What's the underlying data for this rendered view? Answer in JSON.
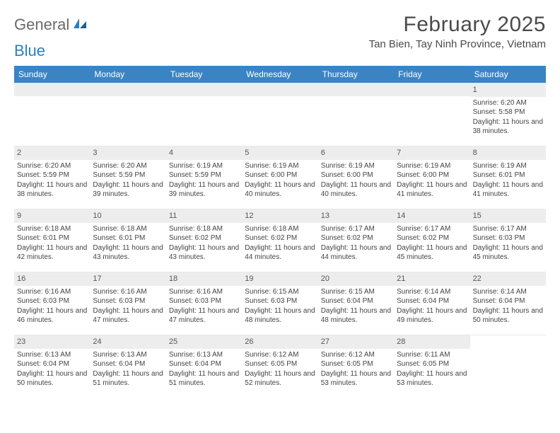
{
  "logo": {
    "word1": "General",
    "word2": "Blue"
  },
  "title": "February 2025",
  "location": "Tan Bien, Tay Ninh Province, Vietnam",
  "colors": {
    "header_bg": "#3b84c4",
    "header_fg": "#ffffff",
    "band_bg": "#ededed",
    "text": "#444444",
    "title_text": "#4a4a4a",
    "logo_gray": "#6a6a6a",
    "logo_blue": "#2b7fbf"
  },
  "fonts": {
    "title_size_pt": 22,
    "location_size_pt": 11,
    "dow_size_pt": 9,
    "day_num_size_pt": 8,
    "body_size_pt": 7.5
  },
  "days_of_week": [
    "Sunday",
    "Monday",
    "Tuesday",
    "Wednesday",
    "Thursday",
    "Friday",
    "Saturday"
  ],
  "weeks": [
    [
      null,
      null,
      null,
      null,
      null,
      null,
      {
        "n": "1",
        "sr": "Sunrise: 6:20 AM",
        "ss": "Sunset: 5:58 PM",
        "dl": "Daylight: 11 hours and 38 minutes."
      }
    ],
    [
      {
        "n": "2",
        "sr": "Sunrise: 6:20 AM",
        "ss": "Sunset: 5:59 PM",
        "dl": "Daylight: 11 hours and 38 minutes."
      },
      {
        "n": "3",
        "sr": "Sunrise: 6:20 AM",
        "ss": "Sunset: 5:59 PM",
        "dl": "Daylight: 11 hours and 39 minutes."
      },
      {
        "n": "4",
        "sr": "Sunrise: 6:19 AM",
        "ss": "Sunset: 5:59 PM",
        "dl": "Daylight: 11 hours and 39 minutes."
      },
      {
        "n": "5",
        "sr": "Sunrise: 6:19 AM",
        "ss": "Sunset: 6:00 PM",
        "dl": "Daylight: 11 hours and 40 minutes."
      },
      {
        "n": "6",
        "sr": "Sunrise: 6:19 AM",
        "ss": "Sunset: 6:00 PM",
        "dl": "Daylight: 11 hours and 40 minutes."
      },
      {
        "n": "7",
        "sr": "Sunrise: 6:19 AM",
        "ss": "Sunset: 6:00 PM",
        "dl": "Daylight: 11 hours and 41 minutes."
      },
      {
        "n": "8",
        "sr": "Sunrise: 6:19 AM",
        "ss": "Sunset: 6:01 PM",
        "dl": "Daylight: 11 hours and 41 minutes."
      }
    ],
    [
      {
        "n": "9",
        "sr": "Sunrise: 6:18 AM",
        "ss": "Sunset: 6:01 PM",
        "dl": "Daylight: 11 hours and 42 minutes."
      },
      {
        "n": "10",
        "sr": "Sunrise: 6:18 AM",
        "ss": "Sunset: 6:01 PM",
        "dl": "Daylight: 11 hours and 43 minutes."
      },
      {
        "n": "11",
        "sr": "Sunrise: 6:18 AM",
        "ss": "Sunset: 6:02 PM",
        "dl": "Daylight: 11 hours and 43 minutes."
      },
      {
        "n": "12",
        "sr": "Sunrise: 6:18 AM",
        "ss": "Sunset: 6:02 PM",
        "dl": "Daylight: 11 hours and 44 minutes."
      },
      {
        "n": "13",
        "sr": "Sunrise: 6:17 AM",
        "ss": "Sunset: 6:02 PM",
        "dl": "Daylight: 11 hours and 44 minutes."
      },
      {
        "n": "14",
        "sr": "Sunrise: 6:17 AM",
        "ss": "Sunset: 6:02 PM",
        "dl": "Daylight: 11 hours and 45 minutes."
      },
      {
        "n": "15",
        "sr": "Sunrise: 6:17 AM",
        "ss": "Sunset: 6:03 PM",
        "dl": "Daylight: 11 hours and 45 minutes."
      }
    ],
    [
      {
        "n": "16",
        "sr": "Sunrise: 6:16 AM",
        "ss": "Sunset: 6:03 PM",
        "dl": "Daylight: 11 hours and 46 minutes."
      },
      {
        "n": "17",
        "sr": "Sunrise: 6:16 AM",
        "ss": "Sunset: 6:03 PM",
        "dl": "Daylight: 11 hours and 47 minutes."
      },
      {
        "n": "18",
        "sr": "Sunrise: 6:16 AM",
        "ss": "Sunset: 6:03 PM",
        "dl": "Daylight: 11 hours and 47 minutes."
      },
      {
        "n": "19",
        "sr": "Sunrise: 6:15 AM",
        "ss": "Sunset: 6:03 PM",
        "dl": "Daylight: 11 hours and 48 minutes."
      },
      {
        "n": "20",
        "sr": "Sunrise: 6:15 AM",
        "ss": "Sunset: 6:04 PM",
        "dl": "Daylight: 11 hours and 48 minutes."
      },
      {
        "n": "21",
        "sr": "Sunrise: 6:14 AM",
        "ss": "Sunset: 6:04 PM",
        "dl": "Daylight: 11 hours and 49 minutes."
      },
      {
        "n": "22",
        "sr": "Sunrise: 6:14 AM",
        "ss": "Sunset: 6:04 PM",
        "dl": "Daylight: 11 hours and 50 minutes."
      }
    ],
    [
      {
        "n": "23",
        "sr": "Sunrise: 6:13 AM",
        "ss": "Sunset: 6:04 PM",
        "dl": "Daylight: 11 hours and 50 minutes."
      },
      {
        "n": "24",
        "sr": "Sunrise: 6:13 AM",
        "ss": "Sunset: 6:04 PM",
        "dl": "Daylight: 11 hours and 51 minutes."
      },
      {
        "n": "25",
        "sr": "Sunrise: 6:13 AM",
        "ss": "Sunset: 6:04 PM",
        "dl": "Daylight: 11 hours and 51 minutes."
      },
      {
        "n": "26",
        "sr": "Sunrise: 6:12 AM",
        "ss": "Sunset: 6:05 PM",
        "dl": "Daylight: 11 hours and 52 minutes."
      },
      {
        "n": "27",
        "sr": "Sunrise: 6:12 AM",
        "ss": "Sunset: 6:05 PM",
        "dl": "Daylight: 11 hours and 53 minutes."
      },
      {
        "n": "28",
        "sr": "Sunrise: 6:11 AM",
        "ss": "Sunset: 6:05 PM",
        "dl": "Daylight: 11 hours and 53 minutes."
      },
      null
    ]
  ]
}
